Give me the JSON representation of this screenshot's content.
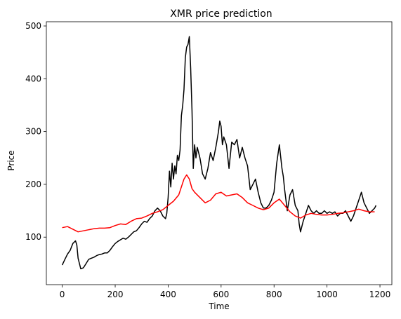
{
  "chart_data": {
    "type": "line",
    "title": "XMR price prediction",
    "xlabel": "Time",
    "ylabel": "Price",
    "xlim": [
      -60,
      1245
    ],
    "ylim": [
      10,
      508
    ],
    "xticks": [
      0,
      200,
      400,
      600,
      800,
      1000,
      1200
    ],
    "yticks": [
      100,
      200,
      300,
      400,
      500
    ],
    "grid": false,
    "legend": "none",
    "series": [
      {
        "color": "#000000",
        "x": [
          0,
          10,
          20,
          30,
          40,
          50,
          55,
          60,
          70,
          80,
          90,
          100,
          110,
          120,
          130,
          140,
          150,
          160,
          170,
          180,
          190,
          200,
          210,
          220,
          230,
          240,
          250,
          260,
          270,
          280,
          290,
          300,
          310,
          320,
          330,
          340,
          350,
          360,
          370,
          380,
          390,
          395,
          400,
          405,
          410,
          415,
          420,
          425,
          430,
          435,
          440,
          445,
          450,
          455,
          460,
          465,
          470,
          475,
          480,
          485,
          490,
          495,
          500,
          505,
          510,
          515,
          520,
          525,
          530,
          540,
          550,
          560,
          570,
          580,
          590,
          595,
          600,
          605,
          610,
          620,
          630,
          640,
          650,
          660,
          670,
          680,
          690,
          700,
          710,
          720,
          730,
          740,
          750,
          760,
          770,
          780,
          790,
          800,
          810,
          820,
          830,
          835,
          840,
          845,
          850,
          860,
          870,
          880,
          890,
          895,
          900,
          910,
          920,
          930,
          940,
          950,
          960,
          970,
          980,
          990,
          1000,
          1010,
          1020,
          1030,
          1040,
          1050,
          1060,
          1070,
          1080,
          1090,
          1100,
          1110,
          1120,
          1130,
          1140,
          1150,
          1160,
          1170,
          1180,
          1185
        ],
        "y": [
          47,
          58,
          68,
          75,
          88,
          93,
          85,
          60,
          40,
          42,
          50,
          58,
          60,
          62,
          65,
          67,
          68,
          70,
          70,
          75,
          82,
          88,
          92,
          95,
          98,
          96,
          100,
          105,
          110,
          112,
          118,
          125,
          130,
          128,
          135,
          140,
          150,
          155,
          150,
          140,
          135,
          145,
          175,
          225,
          195,
          240,
          210,
          235,
          220,
          255,
          245,
          265,
          330,
          350,
          380,
          440,
          460,
          465,
          480,
          420,
          340,
          230,
          275,
          250,
          270,
          260,
          250,
          235,
          220,
          210,
          230,
          260,
          245,
          270,
          300,
          320,
          310,
          275,
          290,
          275,
          230,
          280,
          275,
          285,
          250,
          270,
          250,
          235,
          190,
          200,
          210,
          185,
          165,
          155,
          155,
          160,
          170,
          185,
          240,
          275,
          230,
          215,
          190,
          170,
          150,
          180,
          190,
          160,
          150,
          125,
          110,
          130,
          145,
          160,
          150,
          145,
          150,
          145,
          145,
          150,
          145,
          148,
          145,
          148,
          140,
          145,
          145,
          150,
          140,
          130,
          140,
          155,
          170,
          185,
          165,
          155,
          145,
          150,
          155,
          160
        ]
      },
      {
        "color": "#ff0000",
        "x": [
          0,
          20,
          40,
          60,
          80,
          100,
          120,
          140,
          160,
          180,
          200,
          220,
          240,
          260,
          280,
          300,
          320,
          340,
          360,
          380,
          400,
          420,
          440,
          460,
          470,
          480,
          490,
          500,
          520,
          540,
          560,
          580,
          600,
          620,
          640,
          660,
          680,
          700,
          720,
          740,
          760,
          780,
          800,
          820,
          840,
          860,
          880,
          900,
          920,
          940,
          960,
          980,
          1000,
          1020,
          1040,
          1060,
          1080,
          1100,
          1120,
          1140,
          1160,
          1180
        ],
        "y": [
          118,
          120,
          115,
          110,
          112,
          114,
          116,
          117,
          117,
          118,
          122,
          125,
          124,
          130,
          135,
          136,
          140,
          145,
          148,
          152,
          160,
          168,
          180,
          210,
          218,
          210,
          192,
          185,
          175,
          165,
          170,
          182,
          185,
          178,
          180,
          182,
          175,
          165,
          160,
          155,
          152,
          155,
          165,
          172,
          160,
          148,
          140,
          136,
          142,
          145,
          143,
          142,
          142,
          143,
          145,
          146,
          148,
          150,
          153,
          150,
          148,
          148
        ]
      }
    ]
  }
}
